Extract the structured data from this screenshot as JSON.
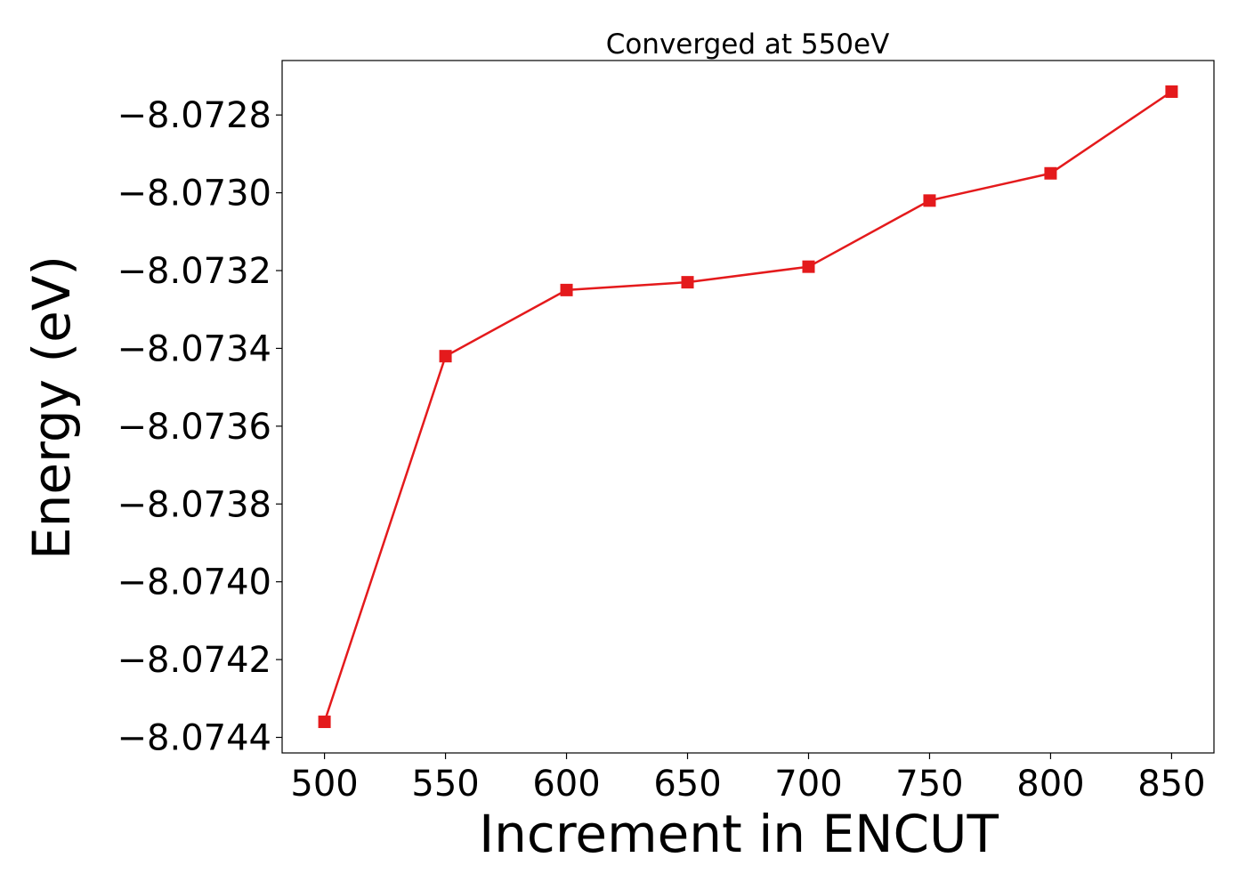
{
  "chart_data": {
    "type": "line",
    "title": "Converged at 550eV",
    "xlabel": "Increment in ENCUT",
    "ylabel": "Energy (eV)",
    "x": [
      500,
      550,
      600,
      650,
      700,
      750,
      800,
      850
    ],
    "series": [
      {
        "values": [
          -8.07436,
          -8.07342,
          -8.07325,
          -8.07323,
          -8.07319,
          -8.07302,
          -8.07295,
          -8.07274
        ],
        "color": "#e41a1c",
        "marker": "square"
      }
    ],
    "xticks": [
      500,
      550,
      600,
      650,
      700,
      750,
      800,
      850
    ],
    "xtick_labels": [
      "500",
      "550",
      "600",
      "650",
      "700",
      "750",
      "800",
      "850"
    ],
    "yticks": [
      -8.0744,
      -8.0742,
      -8.074,
      -8.0738,
      -8.0736,
      -8.0734,
      -8.0732,
      -8.073,
      -8.0728
    ],
    "ytick_labels": [
      "−8.0744",
      "−8.0742",
      "−8.0740",
      "−8.0738",
      "−8.0736",
      "−8.0734",
      "−8.0732",
      "−8.0730",
      "−8.0728"
    ],
    "xlim": [
      482.5,
      867.5
    ],
    "ylim": [
      -8.07444,
      -8.07266
    ],
    "grid": false,
    "legend": "none"
  }
}
